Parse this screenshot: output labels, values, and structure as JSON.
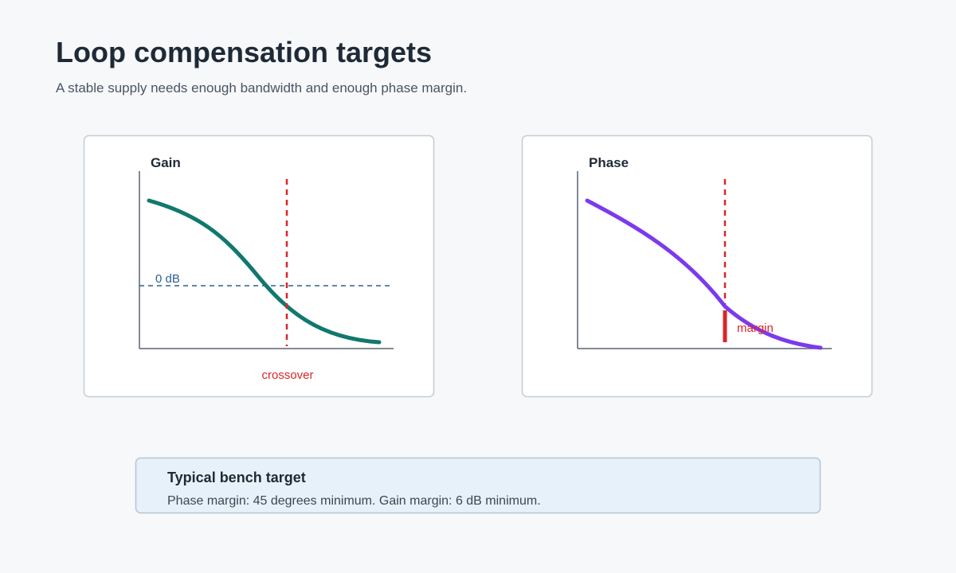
{
  "header": {
    "title": "Loop compensation targets",
    "subtitle": "A stable supply needs enough bandwidth and enough phase margin."
  },
  "panels": [
    {
      "title": "Gain",
      "reference_label": "0 dB",
      "marker_label": "crossover"
    },
    {
      "title": "Phase",
      "marker_label": "margin"
    }
  ],
  "note": {
    "title": "Typical bench target",
    "text": "Phase margin: 45 degrees minimum. Gain margin: 6 dB minimum."
  }
}
